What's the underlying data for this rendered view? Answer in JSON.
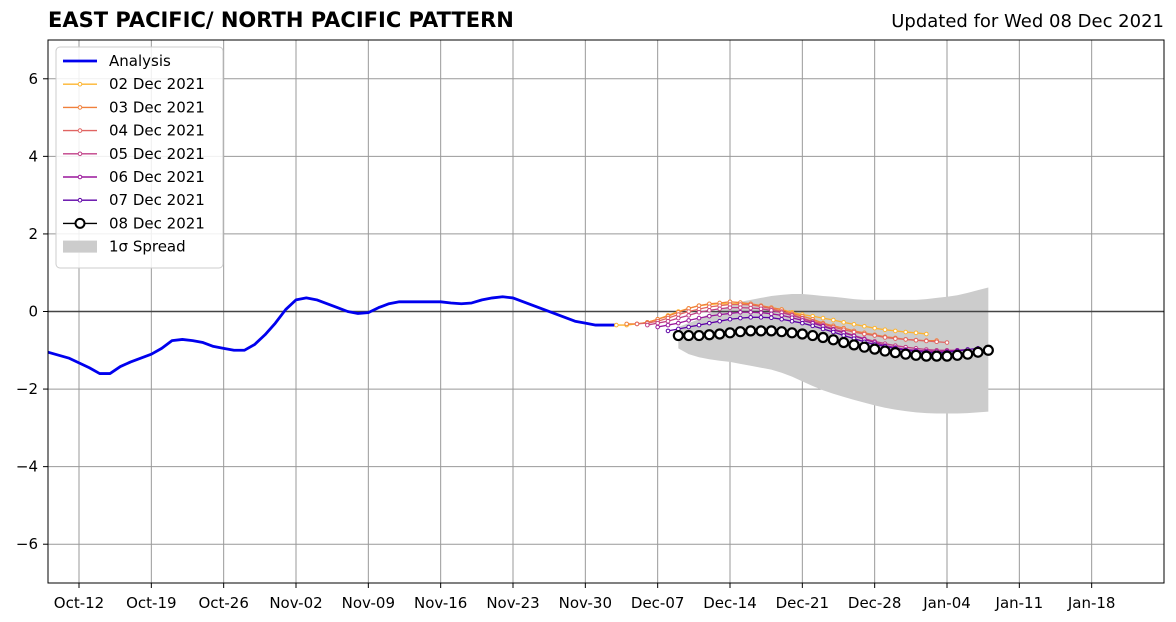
{
  "title": "EAST PACIFIC/ NORTH PACIFIC PATTERN",
  "subtitle": "Updated for Wed 08 Dec 2021",
  "chart_data": {
    "type": "line",
    "title": "EAST PACIFIC/ NORTH PACIFIC PATTERN",
    "x_start_date": "2021-10-09",
    "xlim_days": [
      0,
      108
    ],
    "ylim": [
      -7,
      7
    ],
    "yticks": [
      -6,
      -4,
      -2,
      0,
      2,
      4,
      6
    ],
    "xtick_labels": [
      "Oct-12",
      "Oct-19",
      "Oct-26",
      "Nov-02",
      "Nov-09",
      "Nov-16",
      "Nov-23",
      "Nov-30",
      "Dec-07",
      "Dec-14",
      "Dec-21",
      "Dec-28",
      "Jan-04",
      "Jan-11",
      "Jan-18"
    ],
    "xtick_days": [
      3,
      10,
      17,
      24,
      31,
      38,
      45,
      52,
      59,
      66,
      73,
      80,
      87,
      94,
      101
    ],
    "grid": true,
    "legend_position": "upper-left",
    "legend": [
      {
        "label": "Analysis",
        "color": "#0000ee",
        "style": "line-thick"
      },
      {
        "label": "02 Dec 2021",
        "color": "#fdb42f",
        "style": "line-dots"
      },
      {
        "label": "03 Dec 2021",
        "color": "#f0803c",
        "style": "line-dots"
      },
      {
        "label": "04 Dec 2021",
        "color": "#e06462",
        "style": "line-dots"
      },
      {
        "label": "05 Dec 2021",
        "color": "#c03f87",
        "style": "line-dots"
      },
      {
        "label": "06 Dec 2021",
        "color": "#9a179b",
        "style": "line-dots"
      },
      {
        "label": "07 Dec 2021",
        "color": "#5c01a6",
        "style": "line-dots"
      },
      {
        "label": "08 Dec 2021",
        "color": "#000000",
        "style": "line-circles"
      },
      {
        "label": "1σ Spread",
        "color": "#cccccc",
        "style": "patch"
      }
    ],
    "analysis": {
      "x_days": [
        0,
        2,
        4,
        5,
        6,
        7,
        8,
        9,
        10,
        11,
        12,
        13,
        14,
        15,
        16,
        17,
        18,
        19,
        20,
        21,
        22,
        23,
        24,
        25,
        26,
        27,
        28,
        29,
        30,
        31,
        32,
        33,
        34,
        35,
        36,
        37,
        38,
        39,
        40,
        41,
        42,
        43,
        44,
        45,
        46,
        47,
        48,
        49,
        50,
        51,
        52,
        53,
        54,
        55
      ],
      "y": [
        -1.05,
        -1.2,
        -1.45,
        -1.6,
        -1.6,
        -1.42,
        -1.3,
        -1.2,
        -1.1,
        -0.95,
        -0.75,
        -0.72,
        -0.75,
        -0.8,
        -0.9,
        -0.95,
        -1.0,
        -1.0,
        -0.85,
        -0.6,
        -0.3,
        0.05,
        0.3,
        0.35,
        0.3,
        0.2,
        0.1,
        0.0,
        -0.05,
        -0.03,
        0.1,
        0.2,
        0.25,
        0.25,
        0.25,
        0.25,
        0.25,
        0.22,
        0.2,
        0.22,
        0.3,
        0.35,
        0.38,
        0.35,
        0.25,
        0.15,
        0.05,
        -0.05,
        -0.15,
        -0.25,
        -0.3,
        -0.35,
        -0.35,
        -0.35
      ]
    },
    "forecasts": [
      {
        "name": "02 Dec 2021",
        "color": "#fdb42f",
        "x_days": [
          55,
          56,
          57,
          58,
          59,
          60,
          61,
          62,
          63,
          64,
          65,
          66,
          67,
          68,
          69,
          70,
          71,
          72,
          73,
          74,
          75,
          76,
          77,
          78,
          79,
          80,
          81,
          82,
          83,
          84,
          85
        ],
        "y": [
          -0.35,
          -0.35,
          -0.32,
          -0.28,
          -0.2,
          -0.1,
          0.0,
          0.08,
          0.15,
          0.18,
          0.2,
          0.2,
          0.2,
          0.18,
          0.15,
          0.1,
          0.05,
          -0.02,
          -0.08,
          -0.12,
          -0.17,
          -0.22,
          -0.28,
          -0.33,
          -0.38,
          -0.43,
          -0.47,
          -0.5,
          -0.53,
          -0.55,
          -0.58
        ]
      },
      {
        "name": "03 Dec 2021",
        "color": "#f0803c",
        "x_days": [
          56,
          57,
          58,
          59,
          60,
          61,
          62,
          63,
          64,
          65,
          66,
          67,
          68,
          69,
          70,
          71,
          72,
          73,
          74,
          75,
          76,
          77,
          78,
          79,
          80,
          81,
          82,
          83,
          84,
          85,
          86
        ],
        "y": [
          -0.32,
          -0.32,
          -0.28,
          -0.2,
          -0.12,
          -0.02,
          0.08,
          0.15,
          0.2,
          0.22,
          0.25,
          0.23,
          0.2,
          0.15,
          0.1,
          0.05,
          -0.05,
          -0.12,
          -0.2,
          -0.3,
          -0.37,
          -0.43,
          -0.5,
          -0.55,
          -0.6,
          -0.65,
          -0.68,
          -0.72,
          -0.74,
          -0.75,
          -0.75
        ]
      },
      {
        "name": "04 Dec 2021",
        "color": "#e06462",
        "x_days": [
          57,
          58,
          59,
          60,
          61,
          62,
          63,
          64,
          65,
          66,
          67,
          68,
          69,
          70,
          71,
          72,
          73,
          74,
          75,
          76,
          77,
          78,
          79,
          80,
          81,
          82,
          83,
          84,
          85,
          86,
          87
        ],
        "y": [
          -0.32,
          -0.3,
          -0.25,
          -0.17,
          -0.08,
          0.0,
          0.06,
          0.12,
          0.15,
          0.18,
          0.18,
          0.17,
          0.13,
          0.07,
          0.0,
          -0.08,
          -0.17,
          -0.25,
          -0.32,
          -0.4,
          -0.47,
          -0.53,
          -0.58,
          -0.62,
          -0.67,
          -0.7,
          -0.72,
          -0.74,
          -0.76,
          -0.78,
          -0.8
        ]
      },
      {
        "name": "05 Dec 2021",
        "color": "#c03f87",
        "x_days": [
          58,
          59,
          60,
          61,
          62,
          63,
          64,
          65,
          66,
          67,
          68,
          69,
          70,
          71,
          72,
          73,
          74,
          75,
          76,
          77,
          78,
          79,
          80,
          81,
          82,
          83,
          84,
          85,
          86,
          87,
          88
        ],
        "y": [
          -0.35,
          -0.3,
          -0.25,
          -0.17,
          -0.1,
          -0.02,
          0.03,
          0.07,
          0.1,
          0.1,
          0.09,
          0.07,
          0.03,
          -0.03,
          -0.1,
          -0.18,
          -0.27,
          -0.36,
          -0.45,
          -0.53,
          -0.62,
          -0.7,
          -0.77,
          -0.83,
          -0.88,
          -0.92,
          -0.95,
          -0.98,
          -1.0,
          -1.0,
          -1.0
        ]
      },
      {
        "name": "06 Dec 2021",
        "color": "#9a179b",
        "x_days": [
          59,
          60,
          61,
          62,
          63,
          64,
          65,
          66,
          67,
          68,
          69,
          70,
          71,
          72,
          73,
          74,
          75,
          76,
          77,
          78,
          79,
          80,
          81,
          82,
          83,
          84,
          85,
          86,
          87,
          88,
          89
        ],
        "y": [
          -0.4,
          -0.35,
          -0.3,
          -0.23,
          -0.17,
          -0.12,
          -0.08,
          -0.05,
          -0.02,
          -0.02,
          -0.03,
          -0.06,
          -0.1,
          -0.16,
          -0.23,
          -0.3,
          -0.38,
          -0.47,
          -0.55,
          -0.63,
          -0.72,
          -0.8,
          -0.88,
          -0.93,
          -0.98,
          -1.0,
          -1.02,
          -1.03,
          -1.02,
          -1.0,
          -0.98
        ]
      },
      {
        "name": "07 Dec 2021",
        "color": "#5c01a6",
        "x_days": [
          60,
          61,
          62,
          63,
          64,
          65,
          66,
          67,
          68,
          69,
          70,
          71,
          72,
          73,
          74,
          75,
          76,
          77,
          78,
          79,
          80,
          81,
          82,
          83,
          84,
          85,
          86,
          87,
          88,
          89,
          90
        ],
        "y": [
          -0.5,
          -0.45,
          -0.4,
          -0.35,
          -0.3,
          -0.25,
          -0.2,
          -0.17,
          -0.15,
          -0.15,
          -0.16,
          -0.2,
          -0.25,
          -0.3,
          -0.37,
          -0.45,
          -0.53,
          -0.62,
          -0.7,
          -0.78,
          -0.85,
          -0.9,
          -0.95,
          -1.0,
          -1.03,
          -1.05,
          -1.07,
          -1.05,
          -1.02,
          -0.98,
          -0.95
        ]
      },
      {
        "name": "08 Dec 2021",
        "color": "#000000",
        "x_days": [
          61,
          62,
          63,
          64,
          65,
          66,
          67,
          68,
          69,
          70,
          71,
          72,
          73,
          74,
          75,
          76,
          77,
          78,
          79,
          80,
          81,
          82,
          83,
          84,
          85,
          86,
          87,
          88,
          89,
          90,
          91
        ],
        "y": [
          -0.62,
          -0.62,
          -0.62,
          -0.6,
          -0.58,
          -0.55,
          -0.52,
          -0.5,
          -0.5,
          -0.5,
          -0.52,
          -0.55,
          -0.58,
          -0.62,
          -0.67,
          -0.73,
          -0.8,
          -0.86,
          -0.92,
          -0.97,
          -1.02,
          -1.06,
          -1.1,
          -1.13,
          -1.15,
          -1.15,
          -1.15,
          -1.13,
          -1.1,
          -1.05,
          -1.0
        ]
      }
    ],
    "spread": {
      "x_days": [
        61,
        62,
        63,
        64,
        65,
        66,
        67,
        68,
        69,
        70,
        71,
        72,
        73,
        74,
        75,
        76,
        77,
        78,
        79,
        80,
        81,
        82,
        83,
        84,
        85,
        86,
        87,
        88,
        89,
        90,
        91
      ],
      "upper": [
        -0.4,
        -0.3,
        -0.2,
        -0.05,
        0.05,
        0.15,
        0.25,
        0.3,
        0.35,
        0.4,
        0.43,
        0.45,
        0.45,
        0.43,
        0.4,
        0.38,
        0.35,
        0.32,
        0.3,
        0.3,
        0.3,
        0.3,
        0.3,
        0.3,
        0.32,
        0.35,
        0.38,
        0.42,
        0.48,
        0.55,
        0.62
      ],
      "lower": [
        -0.95,
        -1.1,
        -1.18,
        -1.23,
        -1.27,
        -1.3,
        -1.35,
        -1.4,
        -1.45,
        -1.5,
        -1.58,
        -1.68,
        -1.8,
        -1.92,
        -2.03,
        -2.12,
        -2.2,
        -2.28,
        -2.35,
        -2.42,
        -2.48,
        -2.53,
        -2.57,
        -2.6,
        -2.62,
        -2.63,
        -2.63,
        -2.63,
        -2.62,
        -2.6,
        -2.58
      ]
    }
  }
}
